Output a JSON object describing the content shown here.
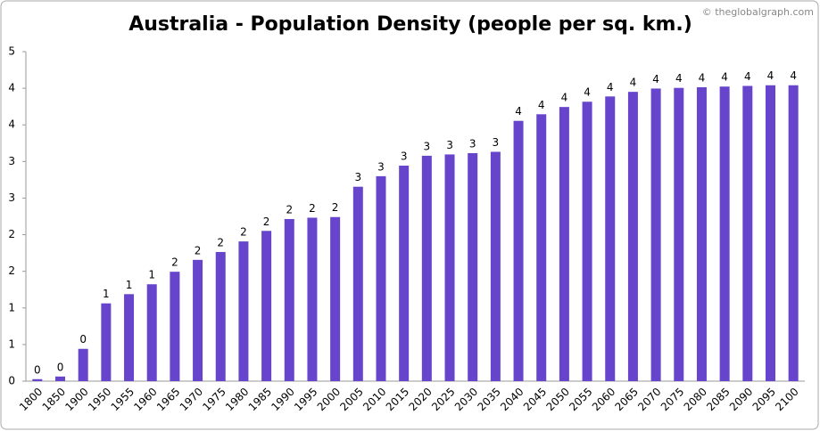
{
  "chart_data": {
    "type": "bar",
    "title": "Australia - Population Density (people per sq. km.)",
    "watermark": "© theglobalgraph.com",
    "categories": [
      "1800",
      "1850",
      "1900",
      "1950",
      "1955",
      "1960",
      "1965",
      "1970",
      "1975",
      "1980",
      "1985",
      "1990",
      "1995",
      "2000",
      "2005",
      "2010",
      "2015",
      "2020",
      "2025",
      "2030",
      "2035",
      "2040",
      "2045",
      "2050",
      "2055",
      "2060",
      "2065",
      "2070",
      "2075",
      "2080",
      "2085",
      "2090",
      "2095",
      "2100"
    ],
    "values": [
      0.03,
      0.07,
      0.49,
      1.18,
      1.32,
      1.47,
      1.66,
      1.84,
      1.96,
      2.12,
      2.28,
      2.46,
      2.48,
      2.49,
      2.95,
      3.11,
      3.27,
      3.42,
      3.44,
      3.46,
      3.48,
      3.95,
      4.05,
      4.16,
      4.24,
      4.32,
      4.39,
      4.44,
      4.45,
      4.46,
      4.47,
      4.48,
      4.49,
      4.49
    ],
    "value_labels": [
      "0",
      "0",
      "0",
      "1",
      "1",
      "1",
      "2",
      "2",
      "2",
      "2",
      "2",
      "2",
      "2",
      "2",
      "3",
      "3",
      "3",
      "3",
      "3",
      "3",
      "3",
      "4",
      "4",
      "4",
      "4",
      "4",
      "4",
      "4",
      "4",
      "4",
      "4",
      "4",
      "4",
      "4"
    ],
    "color": "#6644cc",
    "ylim": [
      0,
      5
    ],
    "yticks": [
      0,
      {
        "value": 0.5556,
        "label": "1"
      },
      {
        "value": 1.1111,
        "label": "1"
      },
      {
        "value": 1.6667,
        "label": "2"
      },
      {
        "value": 2.2222,
        "label": "2"
      },
      {
        "value": 2.7778,
        "label": "3"
      },
      {
        "value": 3.3333,
        "label": "3"
      },
      {
        "value": 3.8889,
        "label": "4"
      },
      {
        "value": 4.4444,
        "label": "4"
      },
      5
    ],
    "grid": false
  }
}
